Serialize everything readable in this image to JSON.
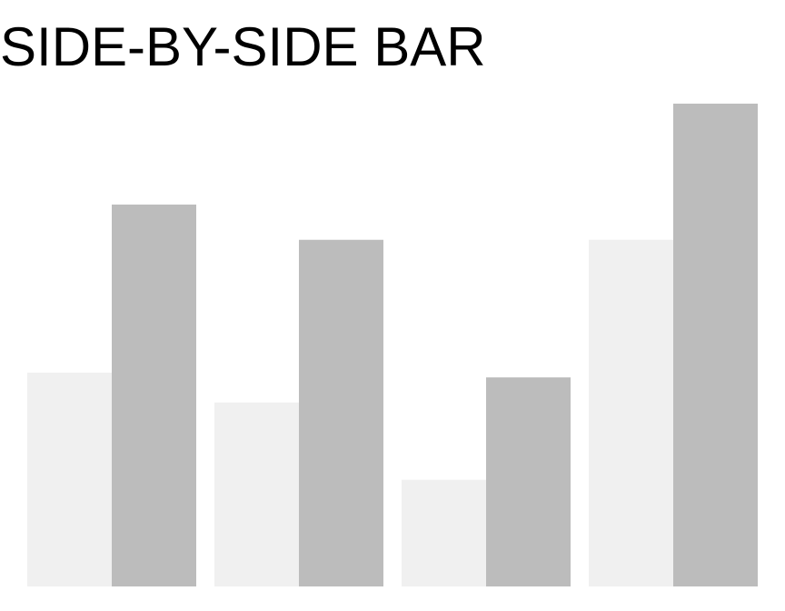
{
  "chart_data": {
    "type": "bar",
    "title": "SIDE-BY-SIDE BAR",
    "xlabel": "",
    "ylabel": "",
    "grid": false,
    "legend": "none",
    "ylim": [
      0,
      100
    ],
    "categories": [
      "",
      "",
      "",
      ""
    ],
    "series": [
      {
        "values": [
          44.3,
          38.1,
          22.1,
          71.8
        ],
        "color": "#f0f0f0"
      },
      {
        "values": [
          79.1,
          71.8,
          43.3,
          100.0
        ],
        "color": "#bcbcbc"
      }
    ]
  }
}
